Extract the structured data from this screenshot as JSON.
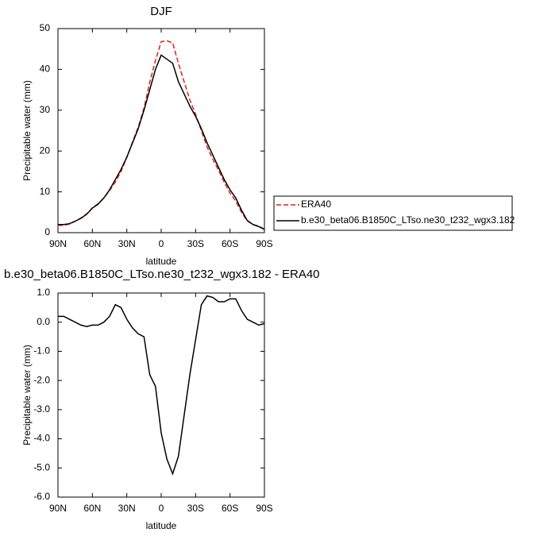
{
  "chart_data": [
    {
      "type": "line",
      "title": "DJF",
      "xlabel": "latitude",
      "ylabel": "Precipitable water (mm)",
      "x": [
        90,
        85,
        80,
        75,
        70,
        65,
        60,
        55,
        50,
        45,
        40,
        35,
        30,
        25,
        20,
        15,
        10,
        5,
        0,
        -5,
        -10,
        -15,
        -20,
        -25,
        -30,
        -35,
        -40,
        -45,
        -50,
        -55,
        -60,
        -65,
        -70,
        -75,
        -80,
        -85,
        -90
      ],
      "xlim": [
        90,
        -90
      ],
      "xticks": [
        {
          "value": 90,
          "label": "90N"
        },
        {
          "value": 60,
          "label": "60N"
        },
        {
          "value": 30,
          "label": "30N"
        },
        0,
        {
          "value": -30,
          "label": "30S"
        },
        {
          "value": -60,
          "label": "60S"
        },
        {
          "value": -90,
          "label": "90S"
        }
      ],
      "ylim": [
        0,
        50
      ],
      "yticks": [
        0,
        10,
        20,
        30,
        40,
        50
      ],
      "legend": "right",
      "series": [
        {
          "name": "ERA40",
          "color": "#e0201b",
          "linestyle": "dashed",
          "values": [
            1.8,
            1.8,
            2.1,
            2.8,
            3.6,
            4.6,
            6.1,
            7.1,
            8.5,
            10.3,
            12.4,
            15,
            18.4,
            22.2,
            25.9,
            30.5,
            36.8,
            42.2,
            46.8,
            47,
            46.5,
            41.5,
            37,
            32.5,
            29,
            25,
            21,
            18,
            15.3,
            12.3,
            9.7,
            7.7,
            5,
            2.9,
            2,
            1.6,
            0.85
          ]
        },
        {
          "name": "b.e30_beta06.B1850C_LTso.ne30_t232_wgx3.182",
          "color": "#000000",
          "linestyle": "solid",
          "values": [
            2,
            2,
            2.2,
            2.8,
            3.5,
            4.5,
            6,
            7,
            8.5,
            10.5,
            13,
            15.5,
            18.5,
            22,
            25.5,
            30,
            35,
            40,
            43.5,
            42.5,
            41.5,
            37,
            34,
            31,
            28.5,
            25.5,
            22,
            19,
            16,
            13,
            10.5,
            8.5,
            5.5,
            3,
            2,
            1.5,
            0.8
          ]
        }
      ]
    },
    {
      "type": "line",
      "title": "b.e30_beta06.B1850C_LTso.ne30_t232_wgx3.182 - ERA40",
      "xlabel": "latitude",
      "ylabel": "Precipitable water (mm)",
      "x": [
        90,
        85,
        80,
        75,
        70,
        65,
        60,
        55,
        50,
        45,
        40,
        35,
        30,
        25,
        20,
        15,
        10,
        5,
        0,
        -5,
        -10,
        -15,
        -20,
        -25,
        -30,
        -35,
        -40,
        -45,
        -50,
        -55,
        -60,
        -65,
        -70,
        -75,
        -80,
        -85,
        -90
      ],
      "xlim": [
        90,
        -90
      ],
      "xticks": [
        {
          "value": 90,
          "label": "90N"
        },
        {
          "value": 60,
          "label": "60N"
        },
        {
          "value": 30,
          "label": "30N"
        },
        0,
        {
          "value": -30,
          "label": "30S"
        },
        {
          "value": -60,
          "label": "60S"
        },
        {
          "value": -90,
          "label": "90S"
        }
      ],
      "ylim": [
        -6,
        1
      ],
      "yticks": [
        {
          "value": -6,
          "label": "-6.0"
        },
        {
          "value": -5,
          "label": "-5.0"
        },
        {
          "value": -4,
          "label": "-4.0"
        },
        {
          "value": -3,
          "label": "-3.0"
        },
        {
          "value": -2,
          "label": "-2.0"
        },
        {
          "value": -1,
          "label": "-1.0"
        },
        {
          "value": 0,
          "label": "0.0"
        },
        {
          "value": 1,
          "label": "1.0"
        }
      ],
      "series": [
        {
          "color": "#000000",
          "linestyle": "solid",
          "values": [
            0.2,
            0.2,
            0.1,
            0,
            -0.1,
            -0.15,
            -0.1,
            -0.1,
            0,
            0.2,
            0.6,
            0.5,
            0.1,
            -0.2,
            -0.4,
            -0.5,
            -1.8,
            -2.2,
            -3.8,
            -4.7,
            -5.2,
            -4.6,
            -3.2,
            -1.8,
            -0.6,
            0.6,
            0.9,
            0.85,
            0.7,
            0.7,
            0.8,
            0.8,
            0.4,
            0.1,
            0,
            -0.1,
            -0.05
          ]
        }
      ]
    }
  ]
}
